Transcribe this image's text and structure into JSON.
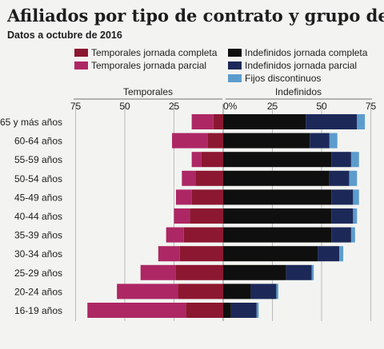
{
  "chart_data": {
    "type": "bar",
    "orientation": "horizontal",
    "layout": "diverging-stacked",
    "title": "Afiliados por tipo de contrato y grupo de edad",
    "subtitle": "Datos a octubre de 2016",
    "left_panel_label": "Temporales",
    "right_panel_label": "Indefinidos",
    "unit": "%",
    "xlim": [
      -75,
      75
    ],
    "ticks": [
      {
        "value": -75,
        "label": "75"
      },
      {
        "value": -50,
        "label": "50"
      },
      {
        "value": -25,
        "label": "25"
      },
      {
        "value": 0,
        "label": "0%"
      },
      {
        "value": 25,
        "label": "25"
      },
      {
        "value": 50,
        "label": "50"
      },
      {
        "value": 75,
        "label": "75"
      }
    ],
    "grid": true,
    "legend_position": "top",
    "categories": [
      "65 y más años",
      "60-64 años",
      "55-59 años",
      "50-54 años",
      "45-49 años",
      "40-44 años",
      "35-39 años",
      "30-34 años",
      "25-29 años",
      "20-24 años",
      "16-19 años"
    ],
    "series": [
      {
        "name": "Temporales jornada completa",
        "side": "left",
        "color": "#8c1730",
        "values": [
          5,
          8,
          11,
          14,
          16,
          17,
          20,
          22,
          24,
          23,
          19
        ]
      },
      {
        "name": "Temporales jornada parcial",
        "side": "left",
        "color": "#ad2764",
        "values": [
          11,
          18,
          5,
          7,
          8,
          8,
          9,
          11,
          18,
          31,
          50
        ]
      },
      {
        "name": "Indefinidos jornada completa",
        "side": "right",
        "color": "#0f0f0f",
        "values": [
          42,
          44,
          55,
          54,
          55,
          55,
          55,
          48,
          32,
          14,
          4
        ]
      },
      {
        "name": "Indefinidos jornada parcial",
        "side": "right",
        "color": "#1c2958",
        "values": [
          26,
          10,
          10,
          10,
          11,
          11,
          10,
          11,
          13,
          13,
          13
        ]
      },
      {
        "name": "Fijos discontinuos",
        "side": "right",
        "color": "#5c9ccd",
        "values": [
          4,
          4,
          4,
          4,
          3,
          2,
          2,
          2,
          1,
          1,
          1
        ]
      }
    ]
  }
}
